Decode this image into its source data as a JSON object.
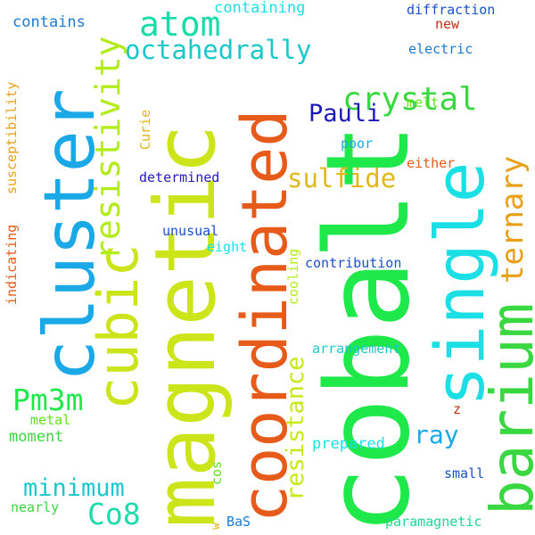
{
  "words": [
    {
      "text": "cobalt",
      "color": "#1ee84a"
    },
    {
      "text": "magnetic",
      "color": "#cce41a"
    },
    {
      "text": "coordinated",
      "color": "#e65a1a"
    },
    {
      "text": "cluster",
      "color": "#1aa8e6"
    },
    {
      "text": "single",
      "color": "#1ae0e6"
    },
    {
      "text": "barium",
      "color": "#3ad840"
    },
    {
      "text": "cubic",
      "color": "#cce41a"
    },
    {
      "text": "resistivity",
      "color": "#b2ec1a"
    },
    {
      "text": "atom",
      "color": "#1adcaa"
    },
    {
      "text": "crystal",
      "color": "#3ad840"
    },
    {
      "text": "octahedrally",
      "color": "#1ac8cc"
    },
    {
      "text": "ternary",
      "color": "#e8a018"
    },
    {
      "text": "sulfide",
      "color": "#e0b81a"
    },
    {
      "text": "Pauli",
      "color": "#1a18b8"
    },
    {
      "text": "resistance",
      "color": "#c8e81a"
    },
    {
      "text": "Pm3m",
      "color": "#1ee84a"
    },
    {
      "text": "minimum",
      "color": "#1ac8cc"
    },
    {
      "text": "Co8",
      "color": "#1adcaa"
    },
    {
      "text": "ray",
      "color": "#1aa8e6"
    },
    {
      "text": "containing",
      "color": "#1ae0e6"
    },
    {
      "text": "contains",
      "color": "#1a7ad0"
    },
    {
      "text": "diffraction",
      "color": "#1a50c8"
    },
    {
      "text": "new",
      "color": "#c03018"
    },
    {
      "text": "electric",
      "color": "#1a7ad0"
    },
    {
      "text": "melt",
      "color": "#5ce41a"
    },
    {
      "text": "susceptibility",
      "color": "#e8a018"
    },
    {
      "text": "Curie",
      "color": "#e0b81a"
    },
    {
      "text": "poor",
      "color": "#1aa8e6"
    },
    {
      "text": "either",
      "color": "#e65a1a"
    },
    {
      "text": "determined",
      "color": "#2418c0"
    },
    {
      "text": "unusual",
      "color": "#1a50c8"
    },
    {
      "text": "eight",
      "color": "#1ae0e6"
    },
    {
      "text": "indicating",
      "color": "#e65a1a"
    },
    {
      "text": "cooling",
      "color": "#b2ec1a"
    },
    {
      "text": "contribution",
      "color": "#1a50c8"
    },
    {
      "text": "arrangement",
      "color": "#1ac8cc"
    },
    {
      "text": "metal",
      "color": "#5ce41a"
    },
    {
      "text": "moment",
      "color": "#3ad840"
    },
    {
      "text": "z",
      "color": "#c03018"
    },
    {
      "text": "prepared",
      "color": "#1ae0e6"
    },
    {
      "text": "cos",
      "color": "#5ce41a"
    },
    {
      "text": "small",
      "color": "#1a50c8"
    },
    {
      "text": "nearly",
      "color": "#3ad840"
    },
    {
      "text": "w",
      "color": "#e0b81a"
    },
    {
      "text": "BaS",
      "color": "#1a7ad0"
    },
    {
      "text": "paramagnetic",
      "color": "#1ad890"
    }
  ]
}
